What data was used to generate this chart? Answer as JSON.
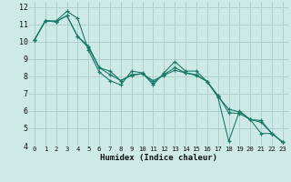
{
  "xlabel": "Humidex (Indice chaleur)",
  "bg_color": "#ceeae6",
  "grid_color": "#aaccc8",
  "line_color": "#1a7a6a",
  "xlim": [
    -0.5,
    23.5
  ],
  "ylim": [
    4,
    12.3
  ],
  "yticks": [
    4,
    5,
    6,
    7,
    8,
    9,
    10,
    11,
    12
  ],
  "xticks": [
    0,
    1,
    2,
    3,
    4,
    5,
    6,
    7,
    8,
    9,
    10,
    11,
    12,
    13,
    14,
    15,
    16,
    17,
    18,
    19,
    20,
    21,
    22,
    23
  ],
  "series": [
    {
      "x": [
        0,
        1,
        2,
        3,
        4,
        5,
        6,
        7,
        8,
        9,
        10,
        11,
        12,
        13,
        14,
        15,
        16,
        17,
        18,
        19,
        20,
        21,
        22,
        23
      ],
      "y": [
        10.1,
        11.2,
        11.2,
        11.75,
        11.35,
        9.5,
        8.25,
        7.75,
        7.5,
        8.3,
        8.2,
        7.5,
        8.2,
        8.85,
        8.3,
        8.3,
        7.7,
        6.8,
        4.25,
        6.0,
        5.5,
        4.7,
        4.7,
        4.2
      ]
    },
    {
      "x": [
        0,
        1,
        2,
        3,
        4,
        5,
        6,
        7,
        8,
        9,
        10,
        11,
        12,
        13,
        14,
        15,
        16,
        17,
        18,
        19,
        20,
        21,
        22,
        23
      ],
      "y": [
        10.1,
        11.2,
        11.15,
        11.5,
        10.3,
        9.75,
        8.5,
        8.3,
        7.75,
        8.05,
        8.15,
        7.75,
        8.05,
        8.35,
        8.2,
        8.05,
        7.7,
        6.9,
        5.9,
        5.85,
        5.5,
        5.45,
        4.7,
        4.2
      ]
    },
    {
      "x": [
        0,
        1,
        2,
        3,
        4,
        5,
        6,
        7,
        8,
        9,
        10,
        11,
        12,
        13,
        14,
        15,
        16,
        17,
        18,
        19,
        20,
        21,
        22,
        23
      ],
      "y": [
        10.1,
        11.2,
        11.15,
        11.5,
        10.3,
        9.65,
        8.5,
        8.1,
        7.75,
        8.1,
        8.15,
        7.65,
        8.1,
        8.5,
        8.2,
        8.1,
        7.7,
        6.85,
        6.1,
        5.95,
        5.5,
        5.35,
        4.7,
        4.2
      ]
    }
  ]
}
